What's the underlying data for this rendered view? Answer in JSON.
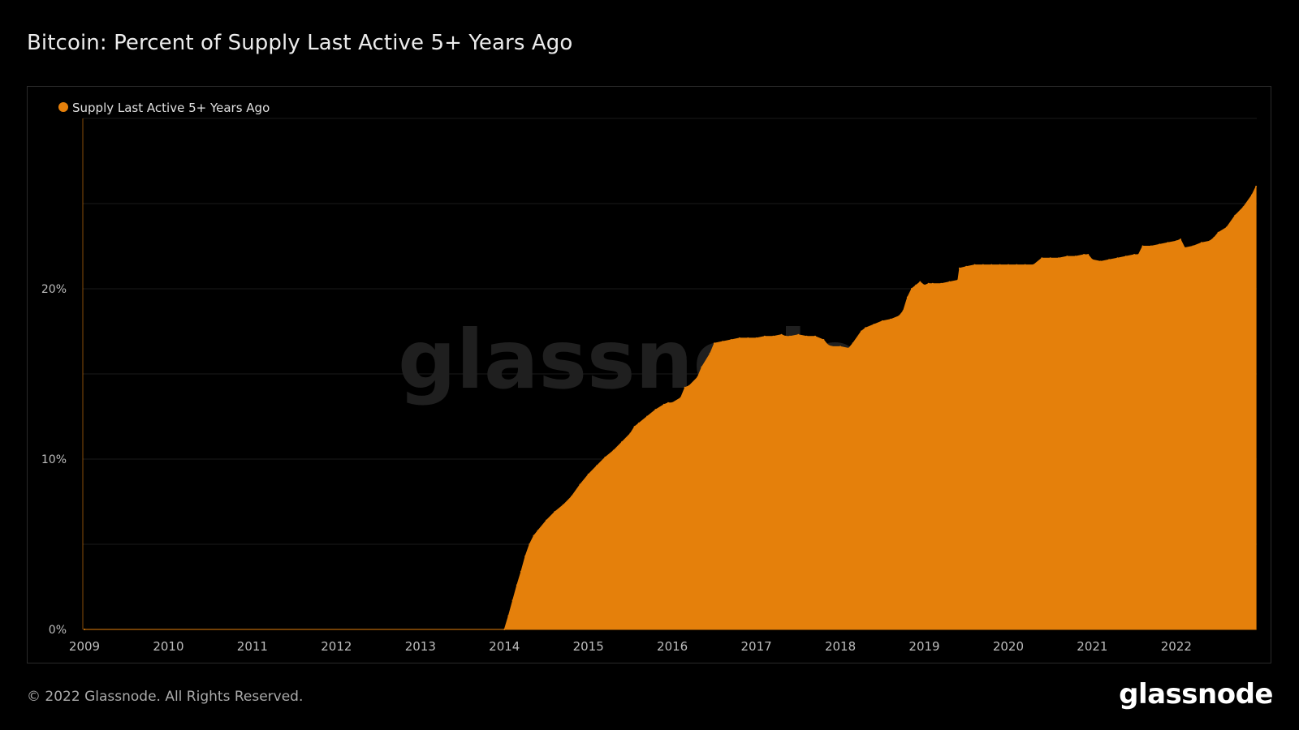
{
  "title": "Bitcoin: Percent of Supply Last Active 5+ Years Ago",
  "watermark": "glassnode",
  "footer": {
    "copyright": "© 2022 Glassnode. All Rights Reserved.",
    "brand": "glassnode"
  },
  "colors": {
    "background": "#000000",
    "series": "#e5800b",
    "grid": "#1a1a1a",
    "axis_text": "#bdbdbd",
    "watermark": "#1f1f1f"
  },
  "chart_data": {
    "type": "area",
    "title": "Bitcoin: Percent of Supply Last Active 5+ Years Ago",
    "xlabel": "",
    "ylabel": "",
    "legend": {
      "placement": "top-left"
    },
    "grid": true,
    "x_ticks": [
      "2009",
      "2010",
      "2011",
      "2012",
      "2013",
      "2014",
      "2015",
      "2016",
      "2017",
      "2018",
      "2019",
      "2020",
      "2021",
      "2022"
    ],
    "y_ticks": [
      {
        "value": 0,
        "label": "0%"
      },
      {
        "value": 10,
        "label": "10%"
      },
      {
        "value": 20,
        "label": "20%"
      }
    ],
    "xlim": [
      2009.0,
      2022.95
    ],
    "ylim": [
      0,
      30
    ],
    "series": [
      {
        "name": "Supply Last Active 5+ Years Ago",
        "color": "#e5800b",
        "x": [
          2009.0,
          2014.0,
          2014.05,
          2014.1,
          2014.15,
          2014.2,
          2014.25,
          2014.3,
          2014.35,
          2014.4,
          2014.5,
          2014.6,
          2014.7,
          2014.8,
          2014.9,
          2015.0,
          2015.1,
          2015.2,
          2015.3,
          2015.4,
          2015.5,
          2015.55,
          2015.6,
          2015.7,
          2015.8,
          2015.9,
          2015.95,
          2016.0,
          2016.1,
          2016.15,
          2016.2,
          2016.3,
          2016.35,
          2016.45,
          2016.5,
          2016.6,
          2016.7,
          2016.8,
          2016.9,
          2017.0,
          2017.1,
          2017.2,
          2017.3,
          2017.35,
          2017.4,
          2017.5,
          2017.6,
          2017.7,
          2017.8,
          2017.85,
          2017.9,
          2018.0,
          2018.1,
          2018.15,
          2018.25,
          2018.3,
          2018.4,
          2018.5,
          2018.6,
          2018.7,
          2018.75,
          2018.8,
          2018.85,
          2018.9,
          2018.95,
          2019.0,
          2019.05,
          2019.1,
          2019.2,
          2019.3,
          2019.4,
          2019.42,
          2019.5,
          2019.6,
          2019.7,
          2019.8,
          2019.9,
          2020.0,
          2020.1,
          2020.2,
          2020.3,
          2020.4,
          2020.5,
          2020.6,
          2020.7,
          2020.8,
          2020.9,
          2020.95,
          2021.0,
          2021.1,
          2021.2,
          2021.3,
          2021.4,
          2021.5,
          2021.55,
          2021.6,
          2021.7,
          2021.8,
          2021.9,
          2022.0,
          2022.05,
          2022.1,
          2022.2,
          2022.3,
          2022.4,
          2022.45,
          2022.5,
          2022.6,
          2022.7,
          2022.8,
          2022.9,
          2022.95
        ],
        "values": [
          0,
          0,
          0.8,
          1.7,
          2.6,
          3.4,
          4.3,
          5.0,
          5.5,
          5.8,
          6.4,
          6.9,
          7.3,
          7.8,
          8.5,
          9.1,
          9.6,
          10.1,
          10.5,
          11.0,
          11.5,
          11.9,
          12.1,
          12.5,
          12.9,
          13.2,
          13.3,
          13.3,
          13.6,
          14.2,
          14.3,
          14.8,
          15.4,
          16.2,
          16.8,
          16.9,
          17.0,
          17.1,
          17.1,
          17.1,
          17.2,
          17.2,
          17.3,
          17.2,
          17.2,
          17.3,
          17.2,
          17.2,
          17.0,
          16.7,
          16.6,
          16.6,
          16.5,
          16.8,
          17.5,
          17.7,
          17.9,
          18.1,
          18.2,
          18.4,
          18.7,
          19.5,
          20.0,
          20.2,
          20.4,
          20.2,
          20.3,
          20.3,
          20.3,
          20.4,
          20.5,
          21.2,
          21.3,
          21.4,
          21.4,
          21.4,
          21.4,
          21.4,
          21.4,
          21.4,
          21.4,
          21.8,
          21.8,
          21.8,
          21.9,
          21.9,
          22.0,
          22.0,
          21.7,
          21.6,
          21.7,
          21.8,
          21.9,
          22.0,
          22.0,
          22.5,
          22.5,
          22.6,
          22.7,
          22.8,
          22.9,
          22.4,
          22.5,
          22.7,
          22.8,
          23.0,
          23.3,
          23.6,
          24.3,
          24.8,
          25.5,
          26.0
        ]
      }
    ]
  }
}
